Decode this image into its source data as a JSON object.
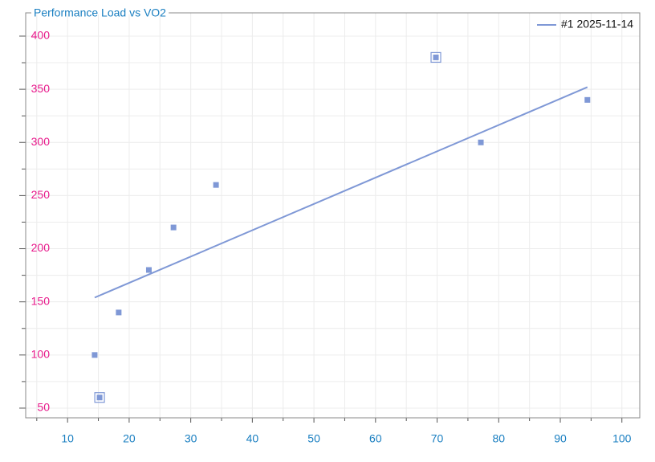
{
  "chart_data": {
    "type": "scatter",
    "title": "Performance Load vs VO2",
    "series": [
      {
        "name": "#1 2025-11-14",
        "color": "#7f98d6",
        "x": [
          14.4,
          15.2,
          18.3,
          23.2,
          27.2,
          34.1,
          69.8,
          77.1,
          94.4
        ],
        "values": [
          100,
          60,
          140,
          180,
          220,
          260,
          380,
          300,
          340
        ],
        "highlight": [
          false,
          true,
          false,
          false,
          false,
          false,
          true,
          false,
          false
        ]
      }
    ],
    "trendline": {
      "x": [
        14.4,
        94.4
      ],
      "values": [
        154,
        352
      ]
    },
    "xlim": [
      3.2,
      102.9
    ],
    "ylim": [
      40.9,
      421.9
    ],
    "xticks": [
      10,
      20,
      30,
      40,
      50,
      60,
      70,
      80,
      90,
      100
    ],
    "yticks": [
      50,
      100,
      150,
      200,
      250,
      300,
      350,
      400
    ],
    "xminorticks": [
      5,
      15,
      25,
      35,
      45,
      55,
      65,
      75,
      85,
      95
    ],
    "yminorticks": [
      75,
      125,
      175,
      225,
      275,
      325,
      375
    ],
    "grid": true,
    "legend": "upper right"
  }
}
